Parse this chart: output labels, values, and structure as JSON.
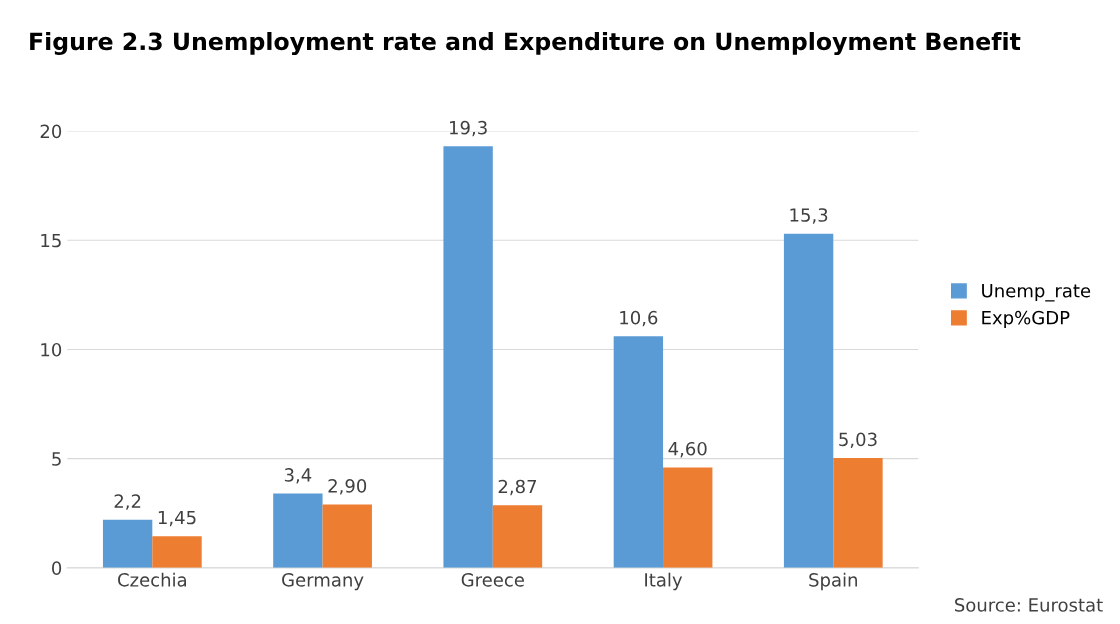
{
  "chart_data": {
    "type": "bar",
    "title": "Figure 2.3 Unemployment rate and Expenditure on Unemployment Benefit",
    "categories": [
      "Czechia",
      "Germany",
      "Greece",
      "Italy",
      "Spain"
    ],
    "series": [
      {
        "name": "Unemp_rate",
        "color": "#5b9bd5",
        "values": [
          2.2,
          3.4,
          19.3,
          10.6,
          15.3
        ],
        "value_labels": [
          "2,2",
          "3,4",
          "19,3",
          "10,6",
          "15,3"
        ]
      },
      {
        "name": "Exp%GDP",
        "color": "#ed7d31",
        "values": [
          1.45,
          2.9,
          2.87,
          4.6,
          5.03
        ],
        "value_labels": [
          "1,45",
          "2,90",
          "2,87",
          "4,60",
          "5,03"
        ]
      }
    ],
    "ylim": [
      0,
      20
    ],
    "yticks": [
      0,
      5,
      10,
      15,
      20
    ],
    "grid": "y",
    "legend": "right",
    "annotations": [
      "Source: Eurostat"
    ]
  }
}
